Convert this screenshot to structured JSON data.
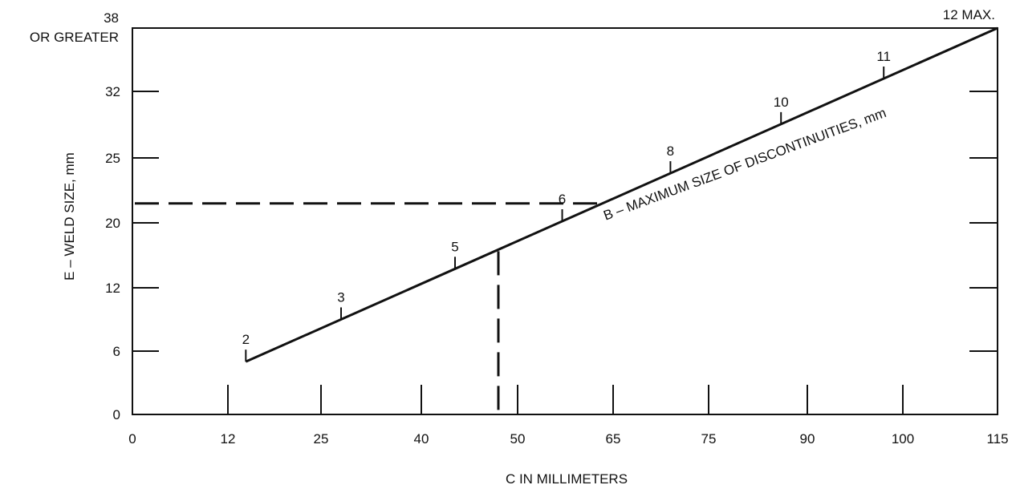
{
  "chart_data": {
    "type": "line",
    "title": "",
    "xlabel": "C IN MILLIMETERS",
    "ylabel": "E – WELD SIZE, mm",
    "x_ticks": [
      "0",
      "12",
      "25",
      "40",
      "50",
      "65",
      "75",
      "90",
      "100",
      "115"
    ],
    "y_ticks": [
      "0",
      "6",
      "12",
      "20",
      "25",
      "32"
    ],
    "y_top_label_line1": "38",
    "y_top_label_line2": "OR GREATER",
    "max_label": "12 MAX.",
    "series": [
      {
        "name": "B – MAXIMUM SIZE OF DISCONTINUITIES, mm",
        "points": [
          {
            "x": 14.5,
            "y": 5,
            "label": "2"
          },
          {
            "x": 28,
            "y": 9.5,
            "label": "3"
          },
          {
            "x": 43.5,
            "y": 14.5,
            "label": "5"
          },
          {
            "x": 57,
            "y": 19.8,
            "label": "6"
          },
          {
            "x": 71,
            "y": 23.5,
            "label": "8"
          },
          {
            "x": 86,
            "y": 28,
            "label": "10"
          },
          {
            "x": 98,
            "y": 33,
            "label": "11"
          },
          {
            "x": 115,
            "y": 38,
            "label": "12 MAX."
          }
        ]
      }
    ],
    "example_guide": {
      "x": 48,
      "y": 21.5
    },
    "grid": false,
    "legend": "none"
  }
}
